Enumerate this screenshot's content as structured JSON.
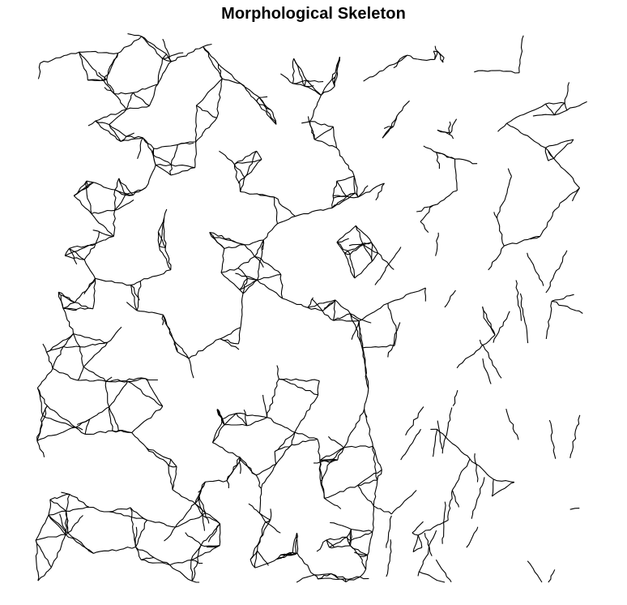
{
  "figure": {
    "title": "Morphological Skeleton",
    "background_color": "#ffffff",
    "line_color": "#000000"
  },
  "image": {
    "content": "binary-skeleton-network",
    "density": "dense-left-half-sparse-right-half"
  }
}
